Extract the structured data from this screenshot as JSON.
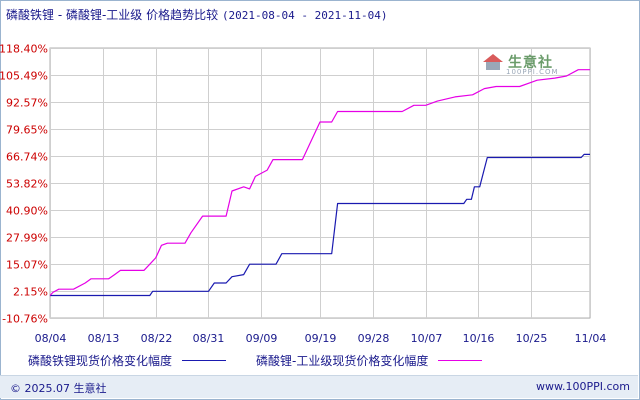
{
  "title": {
    "main": "磷酸铁锂 - 磷酸锂-工业级 价格趋势比较",
    "range": "(2021-08-04 - 2021-11-04)"
  },
  "watermark": {
    "text": "生意社",
    "sub": "100PPI.COM"
  },
  "footer": {
    "copyright": "© 2025.07 生意社",
    "site": "www.100PPI.com"
  },
  "colors": {
    "series1": "#1a1ab0",
    "series2": "#e600e6",
    "ytick_label": "#cc0000",
    "xtick_label": "#1a1a8c",
    "grid": "#cfcfcf"
  },
  "chart_data": {
    "type": "line",
    "title": "磷酸铁锂 - 磷酸锂-工业级 价格趋势比较",
    "ylim": [
      -10.76,
      118.4
    ],
    "yticks": [
      118.4,
      105.49,
      92.57,
      79.65,
      66.74,
      53.82,
      40.9,
      27.99,
      15.07,
      2.15,
      -10.76
    ],
    "ytick_labels": [
      "118.40%",
      "105.49%",
      "92.57%",
      "79.65%",
      "66.74%",
      "53.82%",
      "40.90%",
      "27.99%",
      "15.07%",
      "2.15%",
      "-10.76%"
    ],
    "xlim": [
      0,
      92
    ],
    "xticks": [
      0,
      9,
      18,
      27,
      36,
      46,
      55,
      64,
      73,
      82,
      92
    ],
    "xtick_labels": [
      "08/04",
      "08/13",
      "08/22",
      "08/31",
      "09/09",
      "09/19",
      "09/28",
      "10/07",
      "10/16",
      "10/25",
      "11/04"
    ],
    "grid": true,
    "series": [
      {
        "name": "磷酸铁锂现货价格变化幅度",
        "points": [
          [
            0,
            0
          ],
          [
            17,
            0
          ],
          [
            17.5,
            2
          ],
          [
            27,
            2
          ],
          [
            28,
            6
          ],
          [
            30,
            6
          ],
          [
            31,
            9
          ],
          [
            33,
            10
          ],
          [
            34,
            15
          ],
          [
            38.5,
            15
          ],
          [
            39.5,
            20
          ],
          [
            48,
            20
          ],
          [
            49,
            44
          ],
          [
            70.5,
            44
          ],
          [
            71,
            46
          ],
          [
            71.8,
            46
          ],
          [
            72.3,
            52
          ],
          [
            73.2,
            52
          ],
          [
            74.5,
            66
          ],
          [
            90.5,
            66
          ],
          [
            91,
            67.5
          ],
          [
            92,
            67.5
          ]
        ]
      },
      {
        "name": "磷酸锂-工业级现货价格变化幅度",
        "points": [
          [
            0,
            0
          ],
          [
            0.5,
            1.5
          ],
          [
            1.5,
            3
          ],
          [
            4,
            3
          ],
          [
            6,
            6
          ],
          [
            7,
            8
          ],
          [
            10,
            8
          ],
          [
            11,
            10
          ],
          [
            12,
            12
          ],
          [
            16,
            12
          ],
          [
            17,
            15
          ],
          [
            18,
            18
          ],
          [
            19,
            24
          ],
          [
            20,
            25
          ],
          [
            23,
            25
          ],
          [
            24,
            30
          ],
          [
            26,
            38
          ],
          [
            30,
            38
          ],
          [
            31,
            50
          ],
          [
            33,
            52
          ],
          [
            34,
            51
          ],
          [
            35,
            57
          ],
          [
            37,
            60
          ],
          [
            38,
            65
          ],
          [
            43,
            65
          ],
          [
            46,
            83
          ],
          [
            48,
            83
          ],
          [
            49,
            88
          ],
          [
            60,
            88
          ],
          [
            62,
            91
          ],
          [
            64,
            91
          ],
          [
            66,
            93
          ],
          [
            69,
            95
          ],
          [
            72,
            96
          ],
          [
            74,
            99
          ],
          [
            76,
            100
          ],
          [
            80,
            100
          ],
          [
            82,
            102
          ],
          [
            83,
            103
          ],
          [
            86,
            104
          ],
          [
            88,
            105
          ],
          [
            90,
            108
          ],
          [
            92,
            108
          ]
        ]
      }
    ]
  }
}
